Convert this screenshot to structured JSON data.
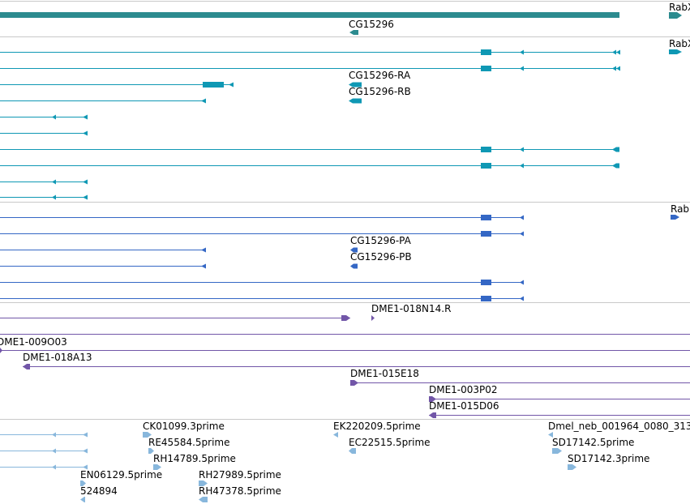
{
  "colors": {
    "gene": "#2c8b8f",
    "transcript": "#0f98b4",
    "protein": "#3467c5",
    "bac": "#7256a8",
    "est": "#88b7dc",
    "separator": "#c9c9c9"
  },
  "tracks": {
    "gene": {
      "labels": [
        "CG15296",
        "RabX"
      ]
    },
    "transcripts": {
      "labels": [
        "RabX",
        "CG15296-RA",
        "CG15296-RB"
      ]
    },
    "proteins": {
      "labels": [
        "Rab",
        "CG15296-PA",
        "CG15296-PB"
      ]
    },
    "bac_ends": {
      "labels": [
        "DME1-018N14.R",
        "DME1-009O03",
        "DME1-018A13",
        "DME1-015E18",
        "DME1-003P02",
        "DME1-015D06"
      ]
    },
    "ests": {
      "labels": [
        "CK01099.3prime",
        "EK220209.5prime",
        "Dmel_neb_001964_0080_313",
        "RE45584.5prime",
        "EC22515.5prime",
        "SD17142.5prime",
        "RH14789.5prime",
        "SD17142.3prime",
        "EN06129.5prime",
        "RH27989.5prime",
        "524894",
        "RH47378.5prime"
      ]
    }
  }
}
